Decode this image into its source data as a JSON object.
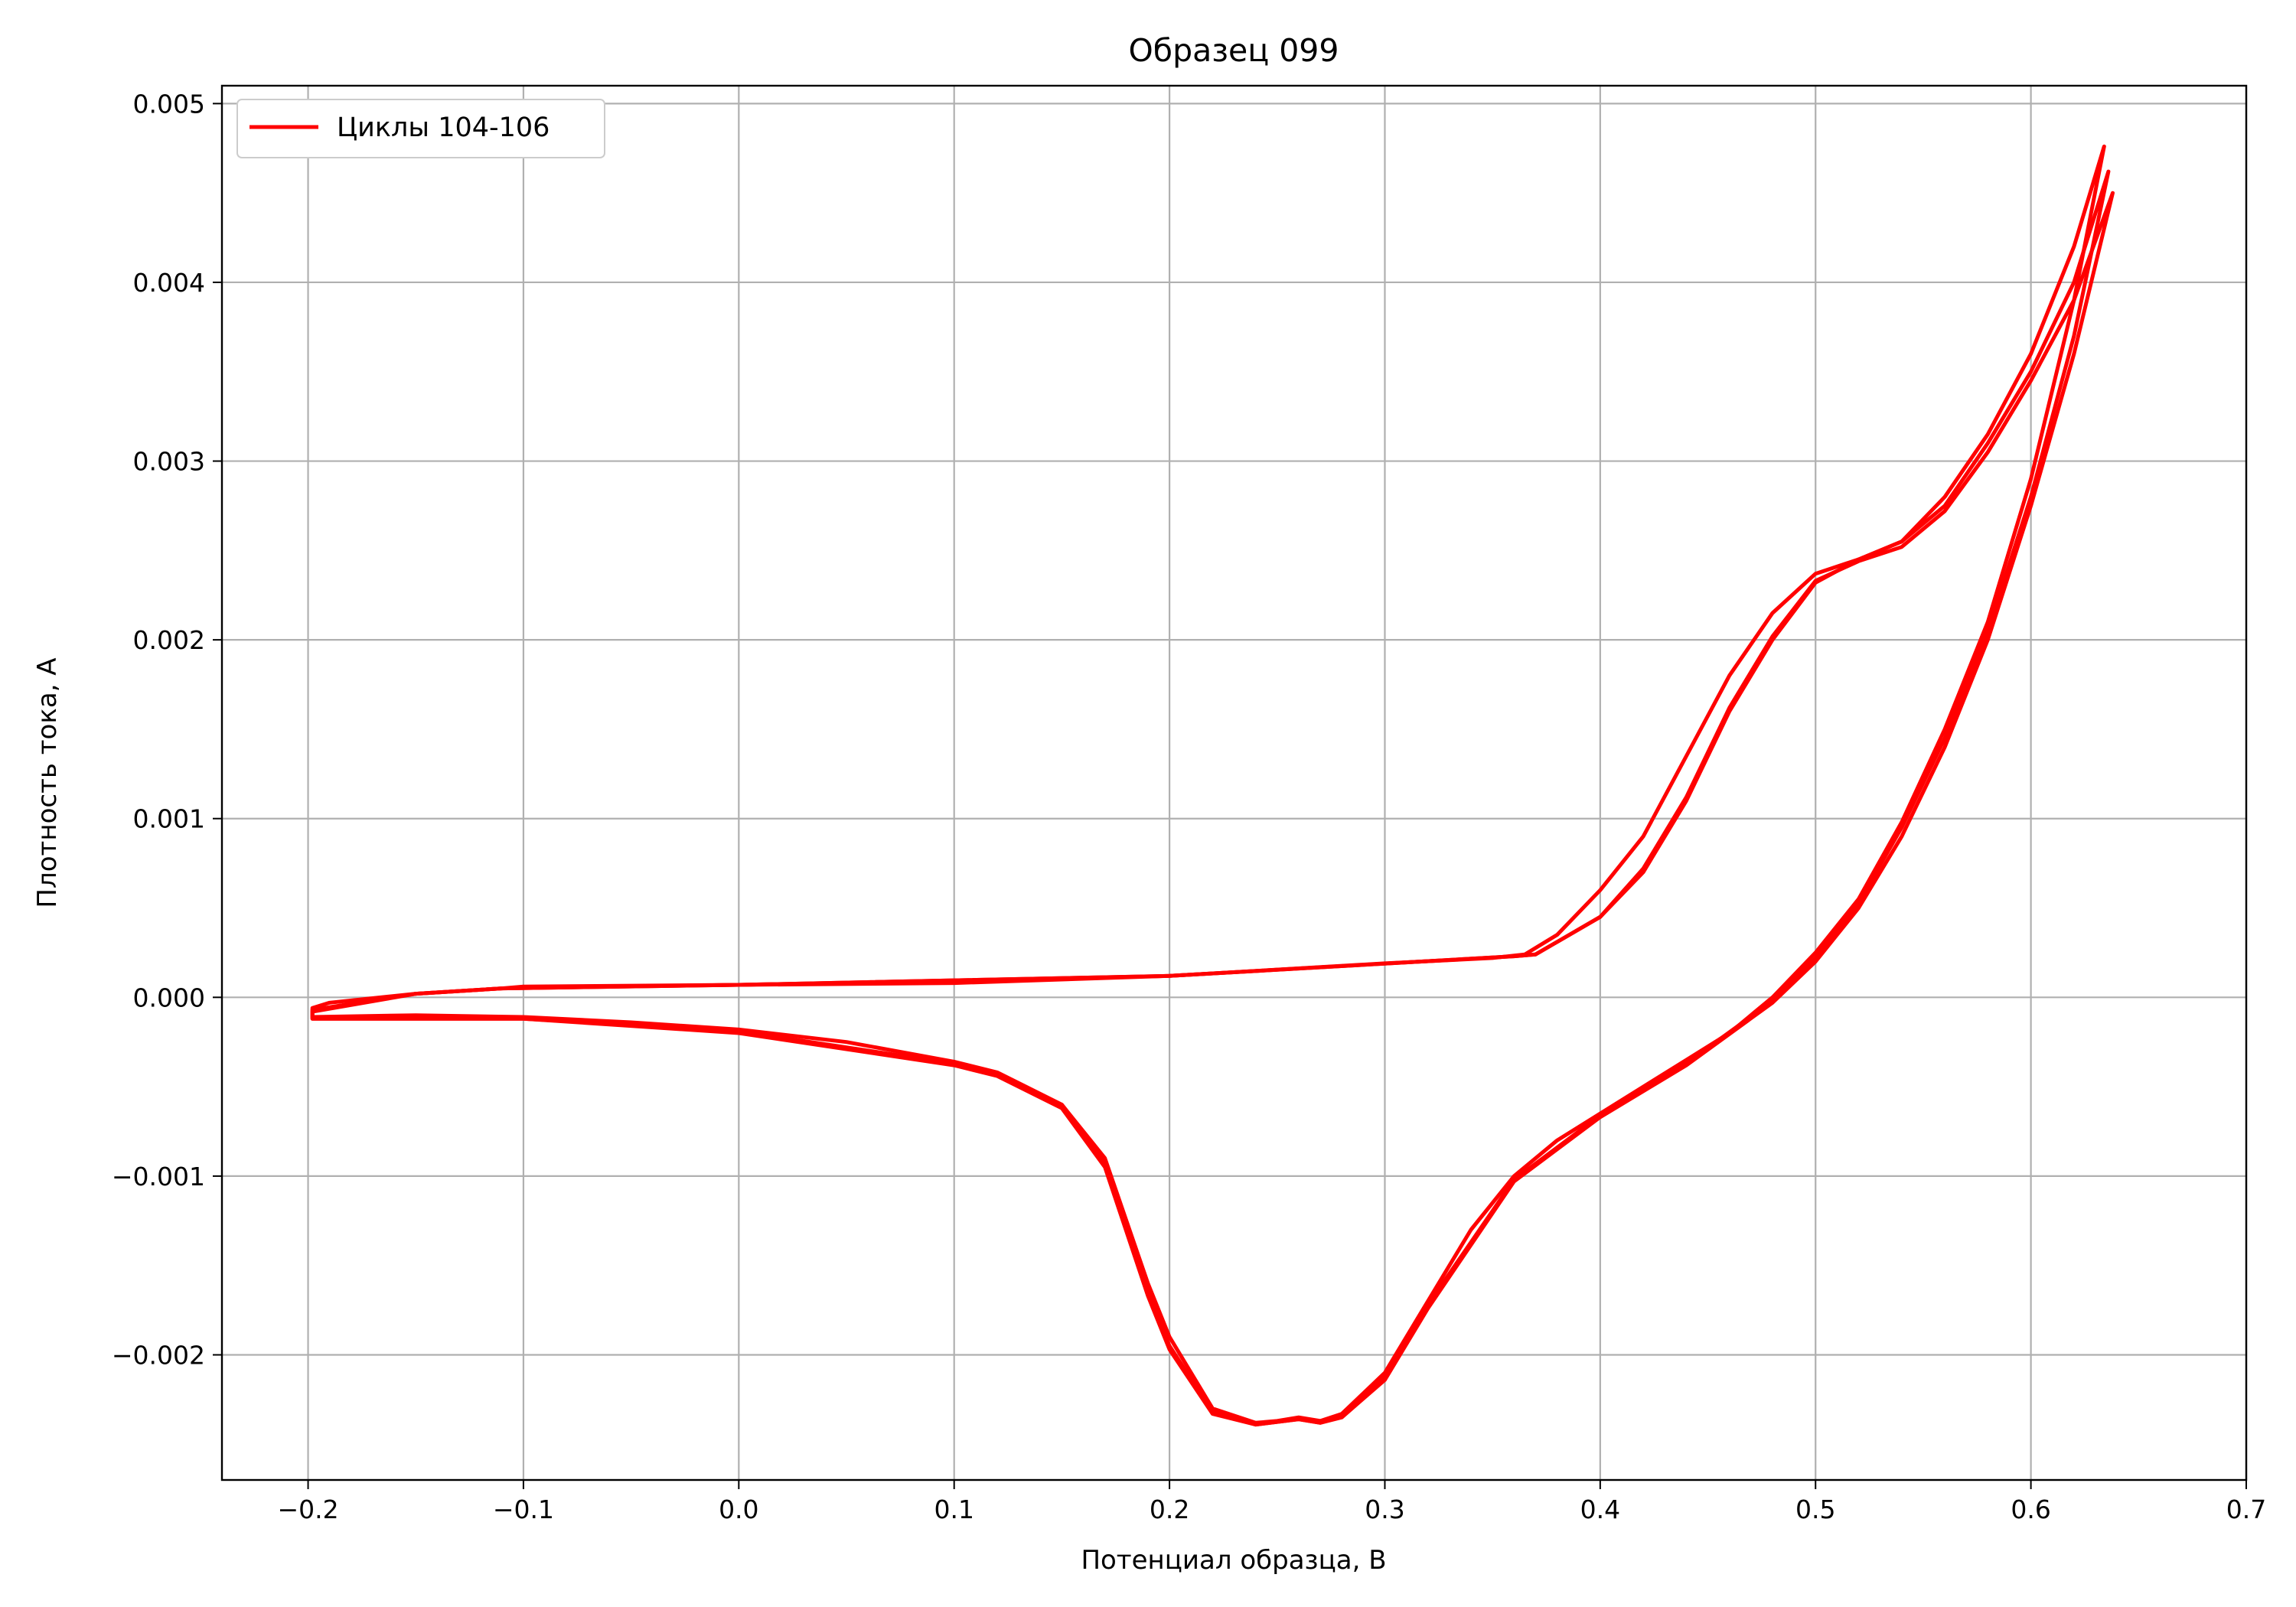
{
  "chart_data": {
    "type": "line",
    "title": "Образец 099",
    "xlabel": "Потенциал образца, В",
    "ylabel": "Плотность тока, А",
    "xlim": [
      -0.24,
      0.7
    ],
    "ylim": [
      -0.0027,
      0.0051
    ],
    "x_ticks": [
      -0.2,
      -0.1,
      0.0,
      0.1,
      0.2,
      0.3,
      0.4,
      0.5,
      0.6,
      0.7
    ],
    "x_tick_labels": [
      "−0.2",
      "−0.1",
      "0.0",
      "0.1",
      "0.2",
      "0.3",
      "0.4",
      "0.5",
      "0.6",
      "0.7"
    ],
    "y_ticks": [
      -0.002,
      -0.001,
      0.0,
      0.001,
      0.002,
      0.003,
      0.004,
      0.005
    ],
    "y_tick_labels": [
      "−0.002",
      "−0.001",
      "0.000",
      "0.001",
      "0.002",
      "0.003",
      "0.004",
      "0.005"
    ],
    "grid": true,
    "legend_position": "top-left",
    "series": [
      {
        "name": "Циклы 104-106",
        "color": "#ff0000",
        "cycles": [
          {
            "forward": [
              [
                -0.11,
                5e-05
              ],
              [
                -0.1,
                6e-05
              ],
              [
                0.0,
                7e-05
              ],
              [
                0.1,
                8e-05
              ],
              [
                0.2,
                0.00012
              ],
              [
                0.3,
                0.00019
              ],
              [
                0.35,
                0.00022
              ],
              [
                0.365,
                0.00024
              ],
              [
                0.38,
                0.00035
              ],
              [
                0.4,
                0.0006
              ],
              [
                0.42,
                0.0009
              ],
              [
                0.44,
                0.00135
              ],
              [
                0.46,
                0.0018
              ],
              [
                0.48,
                0.00215
              ],
              [
                0.5,
                0.00237
              ],
              [
                0.52,
                0.00245
              ],
              [
                0.54,
                0.00255
              ],
              [
                0.56,
                0.0028
              ],
              [
                0.58,
                0.00315
              ],
              [
                0.6,
                0.0036
              ],
              [
                0.62,
                0.0042
              ],
              [
                0.634,
                0.00476
              ]
            ],
            "reverse": [
              [
                0.634,
                0.00476
              ],
              [
                0.62,
                0.0039
              ],
              [
                0.6,
                0.0029
              ],
              [
                0.58,
                0.0021
              ],
              [
                0.56,
                0.0015
              ],
              [
                0.54,
                0.00098
              ],
              [
                0.52,
                0.00055
              ],
              [
                0.5,
                0.00025
              ],
              [
                0.48,
                0.0
              ],
              [
                0.46,
                -0.0002
              ],
              [
                0.44,
                -0.00035
              ],
              [
                0.42,
                -0.0005
              ],
              [
                0.4,
                -0.00065
              ],
              [
                0.38,
                -0.0008
              ],
              [
                0.36,
                -0.001
              ],
              [
                0.34,
                -0.0013
              ],
              [
                0.32,
                -0.0017
              ],
              [
                0.3,
                -0.0021
              ],
              [
                0.28,
                -0.00233
              ],
              [
                0.27,
                -0.00237
              ],
              [
                0.26,
                -0.00235
              ],
              [
                0.25,
                -0.00237
              ],
              [
                0.24,
                -0.00238
              ],
              [
                0.22,
                -0.0023
              ],
              [
                0.2,
                -0.0019
              ],
              [
                0.19,
                -0.0016
              ],
              [
                0.17,
                -0.0009
              ],
              [
                0.15,
                -0.0006
              ],
              [
                0.13,
                -0.00048
              ],
              [
                0.12,
                -0.00042
              ],
              [
                0.1,
                -0.00036
              ],
              [
                0.05,
                -0.00025
              ],
              [
                0.0,
                -0.00018
              ],
              [
                -0.05,
                -0.00014
              ],
              [
                -0.1,
                -0.00011
              ],
              [
                -0.15,
                -0.0001
              ],
              [
                -0.198,
                -0.00011
              ],
              [
                -0.198,
                -6e-05
              ],
              [
                -0.19,
                -3e-05
              ],
              [
                -0.15,
                2e-05
              ],
              [
                -0.11,
                5e-05
              ]
            ]
          },
          {
            "forward": [
              [
                -0.11,
                5e-05
              ],
              [
                0.0,
                7e-05
              ],
              [
                0.2,
                0.00012
              ],
              [
                0.36,
                0.00023
              ],
              [
                0.37,
                0.00024
              ],
              [
                0.4,
                0.00045
              ],
              [
                0.42,
                0.0007
              ],
              [
                0.44,
                0.0011
              ],
              [
                0.46,
                0.0016
              ],
              [
                0.48,
                0.002
              ],
              [
                0.5,
                0.00232
              ],
              [
                0.52,
                0.00245
              ],
              [
                0.54,
                0.00255
              ],
              [
                0.56,
                0.00275
              ],
              [
                0.58,
                0.0031
              ],
              [
                0.6,
                0.0035
              ],
              [
                0.62,
                0.004
              ],
              [
                0.636,
                0.00462
              ]
            ],
            "reverse": [
              [
                0.636,
                0.00462
              ],
              [
                0.62,
                0.0037
              ],
              [
                0.6,
                0.0028
              ],
              [
                0.58,
                0.00205
              ],
              [
                0.56,
                0.00145
              ],
              [
                0.54,
                0.00095
              ],
              [
                0.52,
                0.00053
              ],
              [
                0.5,
                0.00022
              ],
              [
                0.48,
                -2e-05
              ],
              [
                0.44,
                -0.00037
              ],
              [
                0.4,
                -0.00066
              ],
              [
                0.36,
                -0.00102
              ],
              [
                0.32,
                -0.00172
              ],
              [
                0.3,
                -0.00212
              ],
              [
                0.28,
                -0.00234
              ],
              [
                0.27,
                -0.00238
              ],
              [
                0.26,
                -0.00236
              ],
              [
                0.24,
                -0.00239
              ],
              [
                0.22,
                -0.00232
              ],
              [
                0.2,
                -0.00195
              ],
              [
                0.19,
                -0.00165
              ],
              [
                0.17,
                -0.00093
              ],
              [
                0.15,
                -0.00061
              ],
              [
                0.12,
                -0.00043
              ],
              [
                0.1,
                -0.00037
              ],
              [
                0.0,
                -0.00019
              ],
              [
                -0.1,
                -0.00012
              ],
              [
                -0.198,
                -0.00012
              ],
              [
                -0.198,
                -7e-05
              ],
              [
                -0.15,
                2e-05
              ],
              [
                -0.11,
                5e-05
              ]
            ]
          },
          {
            "forward": [
              [
                -0.11,
                5e-05
              ],
              [
                0.0,
                7e-05
              ],
              [
                0.2,
                0.00012
              ],
              [
                0.36,
                0.00023
              ],
              [
                0.37,
                0.00024
              ],
              [
                0.4,
                0.00045
              ],
              [
                0.42,
                0.00072
              ],
              [
                0.44,
                0.00112
              ],
              [
                0.46,
                0.00162
              ],
              [
                0.48,
                0.00202
              ],
              [
                0.5,
                0.00233
              ],
              [
                0.52,
                0.00244
              ],
              [
                0.54,
                0.00252
              ],
              [
                0.56,
                0.00272
              ],
              [
                0.58,
                0.00305
              ],
              [
                0.6,
                0.00345
              ],
              [
                0.62,
                0.0039
              ],
              [
                0.638,
                0.0045
              ]
            ],
            "reverse": [
              [
                0.638,
                0.0045
              ],
              [
                0.62,
                0.0036
              ],
              [
                0.6,
                0.00275
              ],
              [
                0.58,
                0.002
              ],
              [
                0.56,
                0.0014
              ],
              [
                0.54,
                0.0009
              ],
              [
                0.52,
                0.0005
              ],
              [
                0.5,
                0.0002
              ],
              [
                0.48,
                -3e-05
              ],
              [
                0.44,
                -0.00038
              ],
              [
                0.4,
                -0.00067
              ],
              [
                0.36,
                -0.00103
              ],
              [
                0.32,
                -0.00174
              ],
              [
                0.3,
                -0.00214
              ],
              [
                0.28,
                -0.00235
              ],
              [
                0.27,
                -0.00238
              ],
              [
                0.26,
                -0.00236
              ],
              [
                0.24,
                -0.00239
              ],
              [
                0.22,
                -0.00233
              ],
              [
                0.2,
                -0.00197
              ],
              [
                0.19,
                -0.00167
              ],
              [
                0.17,
                -0.00095
              ],
              [
                0.15,
                -0.00062
              ],
              [
                0.12,
                -0.00044
              ],
              [
                0.1,
                -0.00038
              ],
              [
                0.0,
                -0.0002
              ],
              [
                -0.1,
                -0.00012
              ],
              [
                -0.198,
                -0.00012
              ],
              [
                -0.198,
                -8e-05
              ],
              [
                -0.15,
                2e-05
              ],
              [
                -0.11,
                5e-05
              ]
            ]
          }
        ]
      }
    ]
  }
}
